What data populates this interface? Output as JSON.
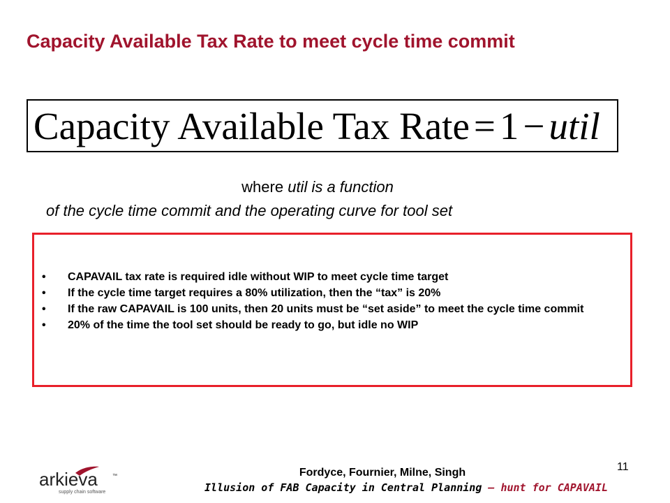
{
  "slide": {
    "title": "Capacity Available Tax Rate to meet cycle time commit",
    "formula": {
      "lhs": "Capacity Available Tax Rate",
      "equals": "=",
      "one": "1",
      "minus": "−",
      "var": "util"
    },
    "where_line1_prefix": "where ",
    "where_line1_var": "util",
    "where_line1_rest": " is a function",
    "where_line2": "of the cycle time commit and the operating curve for tool set",
    "bullets": [
      {
        "text": "CAPAVAIL  tax rate is required idle without WIP to meet cycle time target"
      },
      {
        "text": "If the cycle time target requires a 80% utilization, then the “tax” is 20%"
      },
      {
        "text": "If the raw CAPAVAIL  is 100 units, then 20 units must be “set aside” to meet the cycle time commit"
      },
      {
        "text": "20% of the time the tool set should be ready to go, but idle no WIP"
      }
    ],
    "bullet_symbol": "•",
    "colors": {
      "title": "#a0142d",
      "box_border": "#e8202a",
      "logo_accent": "#a0142d"
    }
  },
  "footer": {
    "authors": "Fordyce, Fournier, Milne, Singh",
    "subtitle_part1": "Illusion of FAB Capacity in Central Planning",
    "subtitle_part2": " – hunt for CAPAVAIL",
    "page_number": "11"
  },
  "logo": {
    "name": "arkieva",
    "tagline": "supply chain software",
    "tm": "™"
  }
}
